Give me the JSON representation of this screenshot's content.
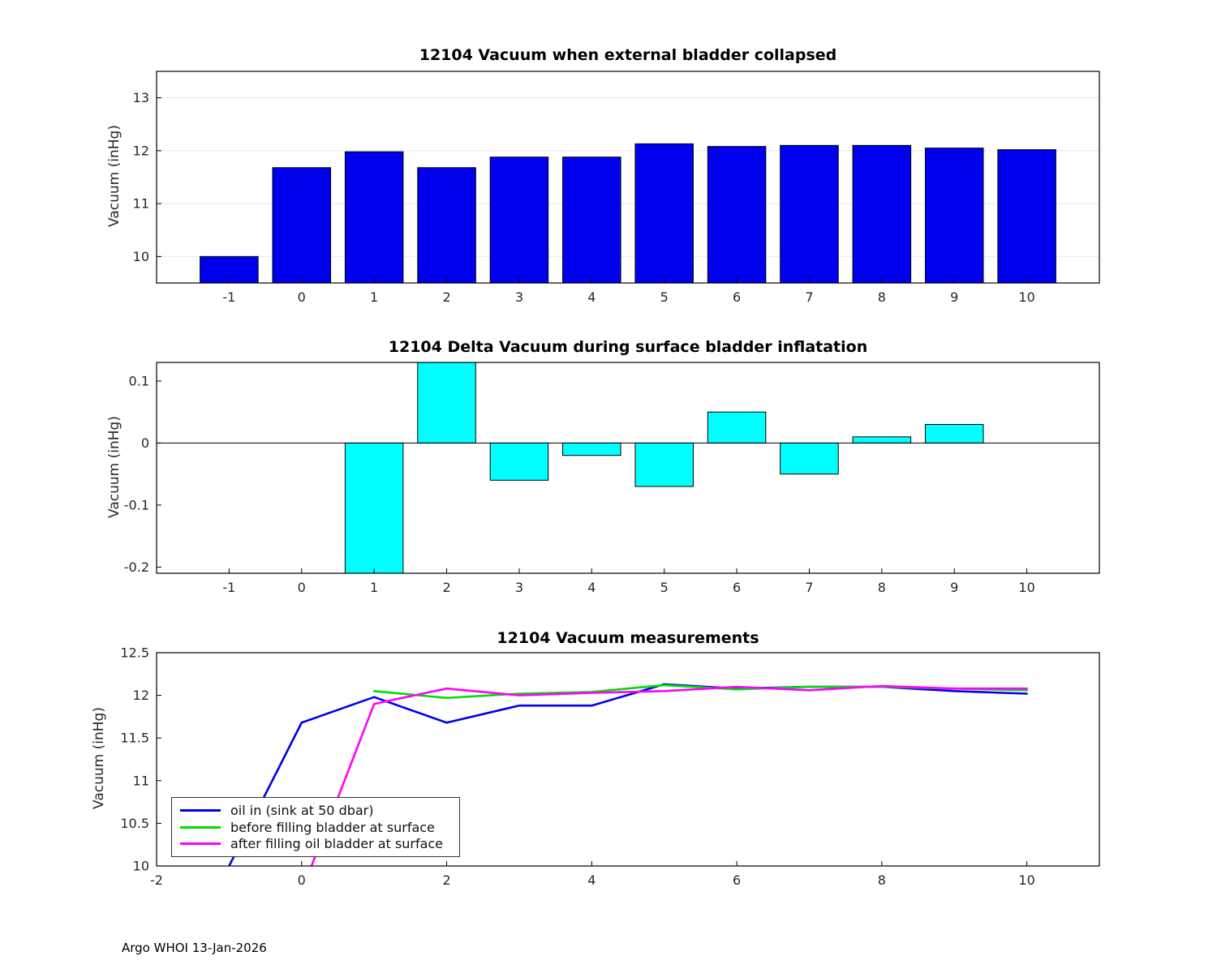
{
  "footer": "Argo WHOI 13-Jan-2026",
  "chart_data": [
    {
      "type": "bar",
      "title": "12104 Vacuum when external bladder collapsed",
      "ylabel": "Vacuum (inHg)",
      "categories": [
        -1,
        0,
        1,
        2,
        3,
        4,
        5,
        6,
        7,
        8,
        9,
        10
      ],
      "values": [
        10.0,
        11.68,
        11.98,
        11.68,
        11.88,
        11.88,
        12.13,
        12.08,
        12.1,
        12.1,
        12.05,
        12.02
      ],
      "bar_color": "#0000EE",
      "bar_edge": "#000000",
      "xlim": [
        -2,
        11
      ],
      "ylim": [
        9.5,
        13.5
      ],
      "xticks": [
        -1,
        0,
        1,
        2,
        3,
        4,
        5,
        6,
        7,
        8,
        9,
        10
      ],
      "yticks": [
        10,
        11,
        12,
        13
      ],
      "baseline": 9.5,
      "grid": "y",
      "legend_position": "none"
    },
    {
      "type": "bar",
      "title": "12104 Delta Vacuum during surface bladder inflatation",
      "ylabel": "Vacuum (inHg)",
      "categories": [
        -1,
        0,
        1,
        2,
        3,
        4,
        5,
        6,
        7,
        8,
        9,
        10
      ],
      "values": [
        0,
        0,
        -0.21,
        0.13,
        -0.06,
        -0.02,
        -0.07,
        0.05,
        -0.05,
        0.01,
        0.03,
        0
      ],
      "bar_color": "#00FFFF",
      "bar_edge": "#000000",
      "xlim": [
        -2,
        11
      ],
      "ylim": [
        -0.21,
        0.13
      ],
      "xticks": [
        -1,
        0,
        1,
        2,
        3,
        4,
        5,
        6,
        7,
        8,
        9,
        10
      ],
      "yticks": [
        -0.2,
        -0.1,
        0,
        0.1
      ],
      "baseline": 0,
      "grid": "none",
      "legend_position": "none"
    },
    {
      "type": "line",
      "title": "12104 Vacuum measurements",
      "ylabel": "Vacuum (inHg)",
      "xlim": [
        -2,
        11
      ],
      "ylim": [
        10,
        12.5
      ],
      "xticks": [
        -2,
        0,
        2,
        4,
        6,
        8,
        10
      ],
      "yticks": [
        10,
        10.5,
        11,
        11.5,
        12,
        12.5
      ],
      "series": [
        {
          "name": "oil in (sink at 50 dbar)",
          "color": "#0000EE",
          "x": [
            -1,
            0,
            1,
            2,
            3,
            4,
            5,
            6,
            7,
            8,
            9,
            10
          ],
          "y": [
            10.0,
            11.68,
            11.98,
            11.68,
            11.88,
            11.88,
            12.13,
            12.08,
            12.1,
            12.1,
            12.05,
            12.02
          ]
        },
        {
          "name": "before filling bladder at surface",
          "color": "#00DD00",
          "x": [
            1,
            2,
            3,
            4,
            5,
            6,
            7,
            8,
            9,
            10
          ],
          "y": [
            12.05,
            11.97,
            12.02,
            12.04,
            12.12,
            12.07,
            12.1,
            12.1,
            12.08,
            12.06
          ]
        },
        {
          "name": "after filling oil bladder at surface",
          "color": "#FF00FF",
          "x": [
            0,
            1,
            2,
            3,
            4,
            5,
            6,
            7,
            8,
            9,
            10
          ],
          "y": [
            9.7,
            11.9,
            12.08,
            12.0,
            12.03,
            12.05,
            12.1,
            12.06,
            12.11,
            12.08,
            12.08
          ]
        }
      ],
      "legend_position": "southwest"
    }
  ]
}
